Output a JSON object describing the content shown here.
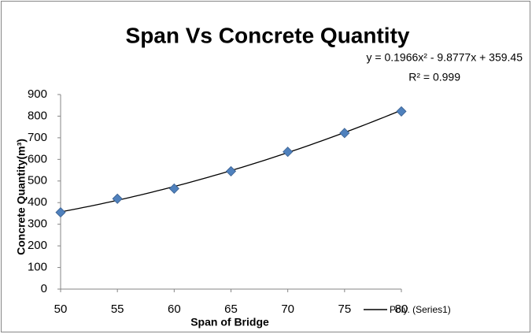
{
  "chart_data": {
    "type": "scatter",
    "title": "Span Vs Concrete Quantity",
    "x_label": "Span of Bridge",
    "y_label": "Concrete Quantity(m³)",
    "annotations": [
      "y = 0.1966x² - 9.8777x + 359.45",
      "R² = 0.999"
    ],
    "series": [
      {
        "name": "Series1",
        "color": "#4f81bd",
        "x": [
          50,
          55,
          60,
          65,
          70,
          75,
          80
        ],
        "values": [
          355,
          418,
          465,
          545,
          635,
          722,
          822
        ]
      }
    ],
    "trendline": {
      "name": "Poly. (Series1)",
      "color": "#000000",
      "coefficients": [
        0.1966,
        -9.8777,
        359.45
      ]
    },
    "xlim": [
      50,
      80
    ],
    "xticks": [
      50,
      55,
      60,
      65,
      70,
      75,
      80
    ],
    "ylim": [
      0,
      900
    ],
    "yticks": [
      0,
      100,
      200,
      300,
      400,
      500,
      600,
      700,
      800,
      900
    ],
    "grid": false,
    "legend": "bottom-right"
  }
}
